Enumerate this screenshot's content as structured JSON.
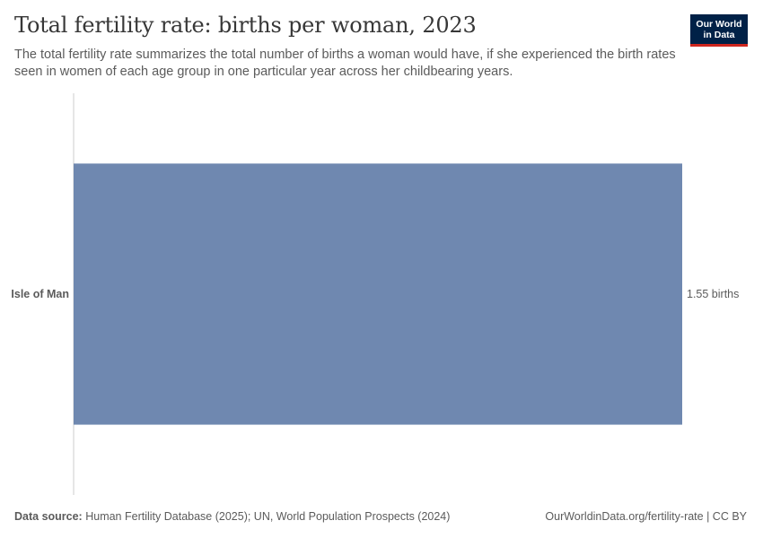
{
  "header": {
    "title": "Total fertility rate: births per woman, 2023",
    "subtitle": "The total fertility rate summarizes the total number of births a woman would have, if she experienced the birth rates seen in women of each age group in one particular year across her childbearing years."
  },
  "logo": {
    "line1": "Our World",
    "line2": "in Data"
  },
  "footer": {
    "source_label": "Data source:",
    "source_text": "Human Fertility Database (2025); UN, World Population Prospects (2024)",
    "url": "OurWorldinData.org/fertility-rate | CC BY"
  },
  "chart_data": {
    "type": "bar",
    "orientation": "horizontal",
    "categories": [
      "Isle of Man"
    ],
    "values": [
      1.55
    ],
    "value_labels": [
      "1.55 births"
    ],
    "xlim": [
      0,
      1.55
    ],
    "grid": false,
    "colors": {
      "bar": "#6f88b0",
      "axis": "#cccccc",
      "label": "#5b5b5b"
    }
  }
}
